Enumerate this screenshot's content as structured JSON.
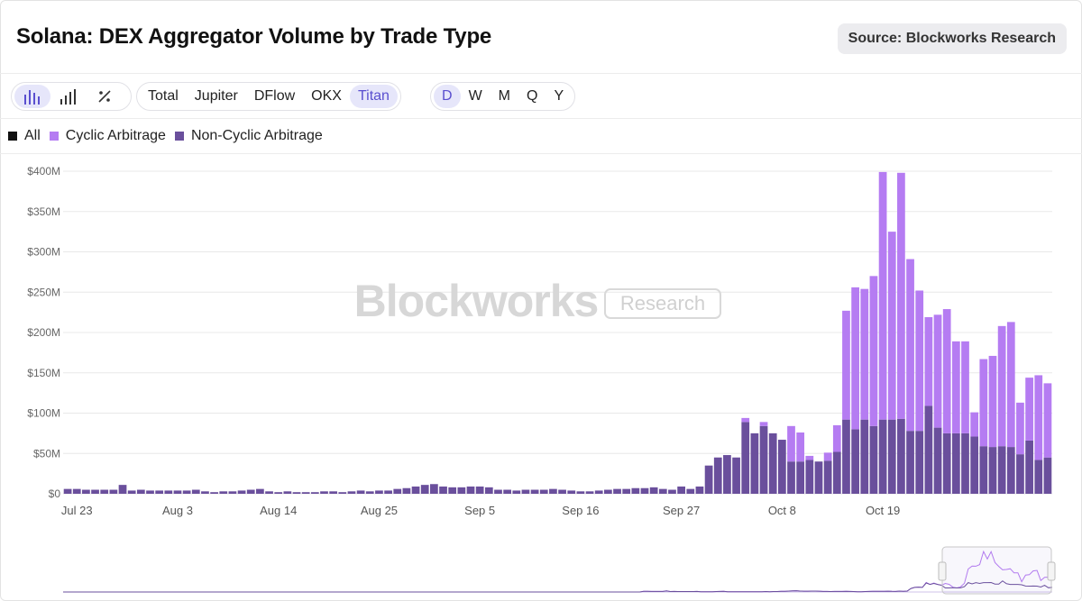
{
  "header": {
    "title": "Solana: DEX Aggregator Volume by Trade Type",
    "source_label": "Source: Blockworks Research"
  },
  "toolbar": {
    "chart_types": [
      {
        "icon": "bar-chart-stacked-icon",
        "active": true
      },
      {
        "icon": "bar-chart-icon",
        "active": false
      },
      {
        "icon": "percent-icon",
        "active": false
      }
    ],
    "filters": [
      {
        "label": "Total",
        "active": false
      },
      {
        "label": "Jupiter",
        "active": false
      },
      {
        "label": "DFlow",
        "active": false
      },
      {
        "label": "OKX",
        "active": false
      },
      {
        "label": "Titan",
        "active": true
      }
    ],
    "periods": [
      {
        "label": "D",
        "active": true
      },
      {
        "label": "W",
        "active": false
      },
      {
        "label": "M",
        "active": false
      },
      {
        "label": "Q",
        "active": false
      },
      {
        "label": "Y",
        "active": false
      }
    ]
  },
  "watermark": {
    "brand": "Blockworks",
    "tag": "Research"
  },
  "colors": {
    "all": "#111111",
    "cyclic": "#b57cf2",
    "noncyclic": "#6a4f9c",
    "accent": "#5a4fcf",
    "grid": "#e8e8e8"
  },
  "chart_data": {
    "type": "bar",
    "stacked": true,
    "ylim": [
      0,
      400
    ],
    "y_unit": "$M",
    "y_ticks": [
      "$0",
      "$50M",
      "$100M",
      "$150M",
      "$200M",
      "$250M",
      "$300M",
      "$350M",
      "$400M"
    ],
    "x_ticks": [
      "Jul 23",
      "Aug 3",
      "Aug 14",
      "Aug 25",
      "Sep 5",
      "Sep 16",
      "Sep 27",
      "Oct 8",
      "Oct 19"
    ],
    "legend": [
      "All",
      "Cyclic Arbitrage",
      "Non-Cyclic Arbitrage"
    ],
    "grid": true,
    "series": [
      {
        "name": "Non-Cyclic Arbitrage",
        "values": [
          6,
          6,
          5,
          5,
          5,
          5,
          11,
          4,
          5,
          4,
          4,
          4,
          4,
          4,
          5,
          3,
          2,
          3,
          3,
          4,
          5,
          6,
          3,
          2,
          3,
          2,
          2,
          2,
          3,
          3,
          2,
          3,
          4,
          3,
          4,
          4,
          6,
          7,
          9,
          11,
          12,
          9,
          8,
          8,
          9,
          9,
          8,
          5,
          5,
          4,
          5,
          5,
          5,
          6,
          5,
          4,
          3,
          3,
          4,
          5,
          6,
          6,
          7,
          7,
          8,
          6,
          5,
          9,
          6,
          9,
          35,
          45,
          48,
          45,
          89,
          75,
          84,
          75,
          67,
          40,
          40,
          42,
          40,
          41,
          52,
          92,
          80,
          92,
          84,
          92,
          92,
          93,
          78,
          78,
          109,
          82,
          75,
          75,
          75,
          71,
          59,
          58,
          59,
          58,
          49,
          66,
          42,
          45
        ]
      },
      {
        "name": "Cyclic Arbitrage",
        "values": [
          0,
          0,
          0,
          0,
          0,
          0,
          0,
          0,
          0,
          0,
          0,
          0,
          0,
          0,
          0,
          0,
          0,
          0,
          0,
          0,
          0,
          0,
          0,
          0,
          0,
          0,
          0,
          0,
          0,
          0,
          0,
          0,
          0,
          0,
          0,
          0,
          0,
          0,
          0,
          0,
          0,
          0,
          0,
          0,
          0,
          0,
          0,
          0,
          0,
          0,
          0,
          0,
          0,
          0,
          0,
          0,
          0,
          0,
          0,
          0,
          0,
          0,
          0,
          0,
          0,
          0,
          0,
          0,
          0,
          0,
          0,
          0,
          0,
          0,
          5,
          0,
          5,
          0,
          0,
          44,
          36,
          5,
          0,
          10,
          33,
          135,
          176,
          162,
          186,
          307,
          233,
          305,
          213,
          174,
          110,
          140,
          154,
          114,
          114,
          30,
          108,
          113,
          149,
          155,
          64,
          78,
          105,
          92
        ]
      }
    ]
  }
}
